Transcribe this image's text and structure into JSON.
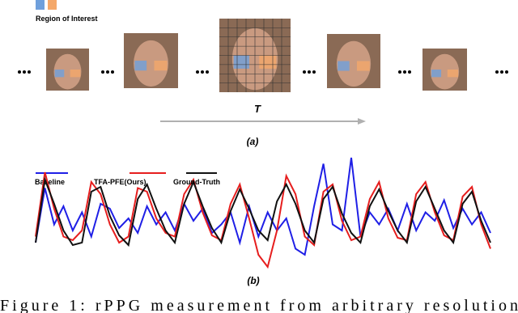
{
  "figure_a": {
    "roi_label": "Region of Interest",
    "time_label": "T",
    "panel_label": "(a)"
  },
  "chart_data": {
    "type": "line",
    "panel_label": "(b)",
    "series": [
      {
        "name": "Baseline",
        "color": "#1f1fe6",
        "values": [
          30,
          75,
          45,
          60,
          40,
          55,
          35,
          62,
          58,
          42,
          50,
          38,
          60,
          45,
          55,
          40,
          62,
          48,
          58,
          38,
          45,
          55,
          30,
          60,
          35,
          55,
          40,
          50,
          25,
          20,
          60,
          95,
          45,
          40,
          100,
          35,
          55,
          45,
          58,
          40,
          62,
          40,
          55,
          48,
          65,
          42,
          58,
          45,
          55,
          38
        ]
      },
      {
        "name": "TFA-PFE(Ours)",
        "color": "#e61e1e",
        "values": [
          35,
          88,
          58,
          35,
          32,
          40,
          80,
          70,
          45,
          30,
          35,
          75,
          72,
          50,
          38,
          35,
          70,
          82,
          55,
          36,
          32,
          62,
          78,
          50,
          20,
          10,
          40,
          85,
          70,
          35,
          28,
          72,
          78,
          48,
          32,
          35,
          66,
          80,
          50,
          34,
          32,
          70,
          80,
          55,
          36,
          32,
          68,
          76,
          45,
          25
        ]
      },
      {
        "name": "Ground-Truth",
        "color": "#111111",
        "values": [
          30,
          82,
          62,
          40,
          28,
          30,
          72,
          76,
          52,
          36,
          28,
          66,
          78,
          58,
          40,
          30,
          62,
          80,
          60,
          42,
          30,
          56,
          74,
          58,
          40,
          32,
          64,
          78,
          62,
          40,
          30,
          66,
          76,
          54,
          38,
          30,
          60,
          74,
          56,
          40,
          30,
          64,
          76,
          58,
          40,
          30,
          62,
          72,
          48,
          30
        ]
      }
    ]
  },
  "caption": "Figure 1: rPPG measurement from arbitrary resolution"
}
